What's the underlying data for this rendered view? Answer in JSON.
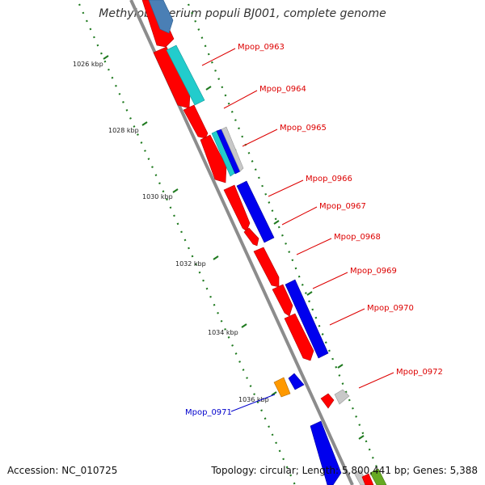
{
  "title": "Methylobacterium populi BJ001, complete genome",
  "footer": {
    "accession_label": "Accession: NC_010725",
    "topology_label": "Topology: circular; Length: 5,800,441 bp; Genes: 5,388"
  },
  "ticks": [
    {
      "label": "1026 kbp"
    },
    {
      "label": "1028 kbp"
    },
    {
      "label": "1030 kbp"
    },
    {
      "label": "1032 kbp"
    },
    {
      "label": "1034 kbp"
    },
    {
      "label": "1036 kbp"
    }
  ],
  "gene_labels": [
    {
      "name": "Mpop_0963",
      "color": "#dd0000"
    },
    {
      "name": "Mpop_0964",
      "color": "#dd0000"
    },
    {
      "name": "Mpop_0965",
      "color": "#dd0000"
    },
    {
      "name": "Mpop_0966",
      "color": "#dd0000"
    },
    {
      "name": "Mpop_0967",
      "color": "#dd0000"
    },
    {
      "name": "Mpop_0968",
      "color": "#dd0000"
    },
    {
      "name": "Mpop_0969",
      "color": "#dd0000"
    },
    {
      "name": "Mpop_0970",
      "color": "#dd0000"
    },
    {
      "name": "Mpop_0972",
      "color": "#dd0000"
    },
    {
      "name": "Mpop_0971",
      "color": "#0000cc"
    }
  ],
  "colors": {
    "backbone": "#8c8c8c",
    "tick_dots": "#1f7a1f",
    "feature_red": "#ff0000",
    "feature_blue": "#0000ee",
    "feature_cyan": "#22cccc",
    "feature_steel": "#4a7fb5",
    "feature_orange": "#ff9900",
    "feature_gray": "#c8c8c8",
    "feature_green": "#66aa22"
  }
}
